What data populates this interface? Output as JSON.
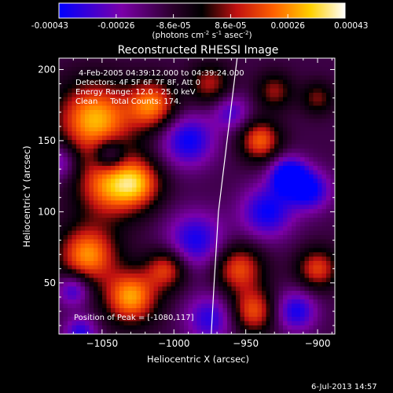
{
  "colorbar": {
    "tick_labels": [
      "-0.00043",
      "-0.00026",
      "-8.6e-05",
      "8.6e-05",
      "0.00026",
      "0.00043"
    ],
    "unit_main": "(photons cm",
    "unit_sup1": "-2",
    "unit_mid": " s",
    "unit_sup2": "-1",
    "unit_mid2": " asec",
    "unit_sup3": "-2",
    "unit_end": ")"
  },
  "chart_data": {
    "type": "heatmap",
    "title": "Reconstructed RHESSI Image",
    "xlabel": "Heliocentric X (arcsec)",
    "ylabel": "Heliocentric Y (arcsec)",
    "xlim": [
      -1080,
      -888
    ],
    "ylim": [
      14,
      208
    ],
    "x_ticks": [
      -1050,
      -1000,
      -950,
      -900
    ],
    "x_tick_labels": [
      "−1050",
      "−1000",
      "−950",
      "−900"
    ],
    "y_ticks": [
      50,
      100,
      150,
      200
    ],
    "y_tick_labels": [
      "50",
      "100",
      "150",
      "200"
    ],
    "color_range": [
      -0.00043,
      0.00043
    ],
    "colormap": [
      "#0000ff",
      "#7b00a8",
      "#3a0040",
      "#000000",
      "#c01010",
      "#ff6000",
      "#ffd000",
      "#ffffff"
    ],
    "limb": [
      [
        -956,
        208
      ],
      [
        -963,
        150
      ],
      [
        -969,
        100
      ],
      [
        -972,
        50
      ],
      [
        -974,
        14
      ]
    ],
    "peak": [
      -1080,
      117
    ],
    "info_lines": [
      "4-Feb-2005 04:39:12.000 to 04:39:24.000",
      "Detectors: 4F 5F 6F 7F 8F, Att 0",
      "Energy Range: 12.0 - 25.0 keV",
      "Clean     Total Counts: 174."
    ],
    "peak_label": "Position of Peak = [-1080,117]",
    "blobs": [
      {
        "x": -1055,
        "y": 165,
        "a": 0.00042,
        "s": 18
      },
      {
        "x": -1045,
        "y": 118,
        "a": 0.00035,
        "s": 16
      },
      {
        "x": -1060,
        "y": 70,
        "a": 0.00038,
        "s": 14
      },
      {
        "x": -1030,
        "y": 40,
        "a": 0.0004,
        "s": 13
      },
      {
        "x": -1015,
        "y": 175,
        "a": 0.00035,
        "s": 12
      },
      {
        "x": -1025,
        "y": 120,
        "a": 0.0003,
        "s": 12
      },
      {
        "x": -1005,
        "y": 60,
        "a": 0.00028,
        "s": 10
      },
      {
        "x": -975,
        "y": 190,
        "a": 0.00022,
        "s": 10
      },
      {
        "x": -955,
        "y": 60,
        "a": 0.0003,
        "s": 12
      },
      {
        "x": -945,
        "y": 30,
        "a": 0.0003,
        "s": 11
      },
      {
        "x": -940,
        "y": 150,
        "a": 0.00032,
        "s": 10
      },
      {
        "x": -930,
        "y": 185,
        "a": 0.0002,
        "s": 9
      },
      {
        "x": -900,
        "y": 60,
        "a": 0.00028,
        "s": 10
      },
      {
        "x": -900,
        "y": 180,
        "a": 0.00018,
        "s": 8
      },
      {
        "x": -990,
        "y": 150,
        "a": -0.0003,
        "s": 13
      },
      {
        "x": -985,
        "y": 80,
        "a": -0.00028,
        "s": 14
      },
      {
        "x": -975,
        "y": 25,
        "a": -0.00025,
        "s": 12
      },
      {
        "x": -935,
        "y": 100,
        "a": -0.0003,
        "s": 13
      },
      {
        "x": -920,
        "y": 125,
        "a": -0.0004,
        "s": 9
      },
      {
        "x": -905,
        "y": 115,
        "a": -0.0003,
        "s": 10
      },
      {
        "x": -915,
        "y": 30,
        "a": -0.00028,
        "s": 10
      },
      {
        "x": -1070,
        "y": 45,
        "a": -0.00025,
        "s": 8
      },
      {
        "x": -1065,
        "y": 15,
        "a": -0.00025,
        "s": 8
      },
      {
        "x": -1045,
        "y": 140,
        "a": -0.00025,
        "s": 8
      },
      {
        "x": -960,
        "y": 170,
        "a": -0.0002,
        "s": 9
      },
      {
        "x": -1080,
        "y": 135,
        "a": -0.0002,
        "s": 9
      }
    ]
  },
  "footer": {
    "date": "6-Jul-2013 14:57"
  }
}
